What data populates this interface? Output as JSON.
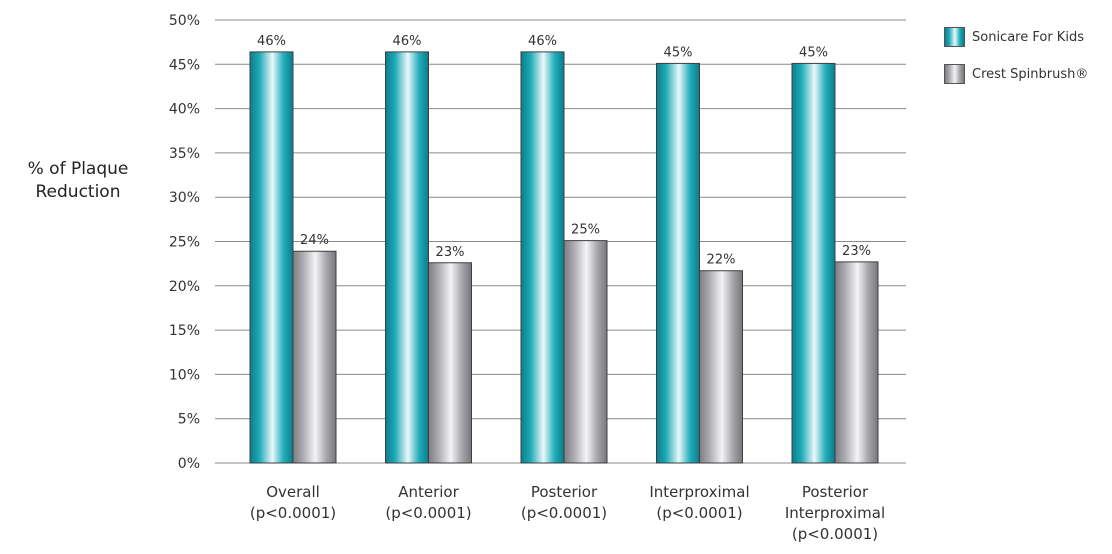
{
  "chart_data": {
    "type": "bar",
    "ylabel": "% of Plaque Reduction",
    "ylim": [
      0,
      50
    ],
    "yticks": [
      "0%",
      "5%",
      "10%",
      "15%",
      "20%",
      "25%",
      "30%",
      "35%",
      "40%",
      "45%",
      "50%"
    ],
    "grid": true,
    "legend_position": "top-right",
    "categories": [
      [
        "Overall",
        "(p<0.0001)"
      ],
      [
        "Anterior",
        "(p<0.0001)"
      ],
      [
        "Posterior",
        "(p<0.0001)"
      ],
      [
        "Interproximal",
        "(p<0.0001)"
      ],
      [
        "Posterior",
        "Interproximal",
        "(p<0.0001)"
      ]
    ],
    "series": [
      {
        "name": "Sonicare For Kids",
        "values": [
          46.4,
          46.4,
          46.4,
          45.1,
          45.1
        ],
        "labels": [
          "46%",
          "46%",
          "46%",
          "45%",
          "45%"
        ],
        "color": "#1fa9b7"
      },
      {
        "name": "Crest Spinbrush®",
        "values": [
          23.9,
          22.6,
          25.1,
          21.7,
          22.7
        ],
        "labels": [
          "24%",
          "23%",
          "25%",
          "22%",
          "23%"
        ],
        "color": "#a9a9ad"
      }
    ]
  }
}
